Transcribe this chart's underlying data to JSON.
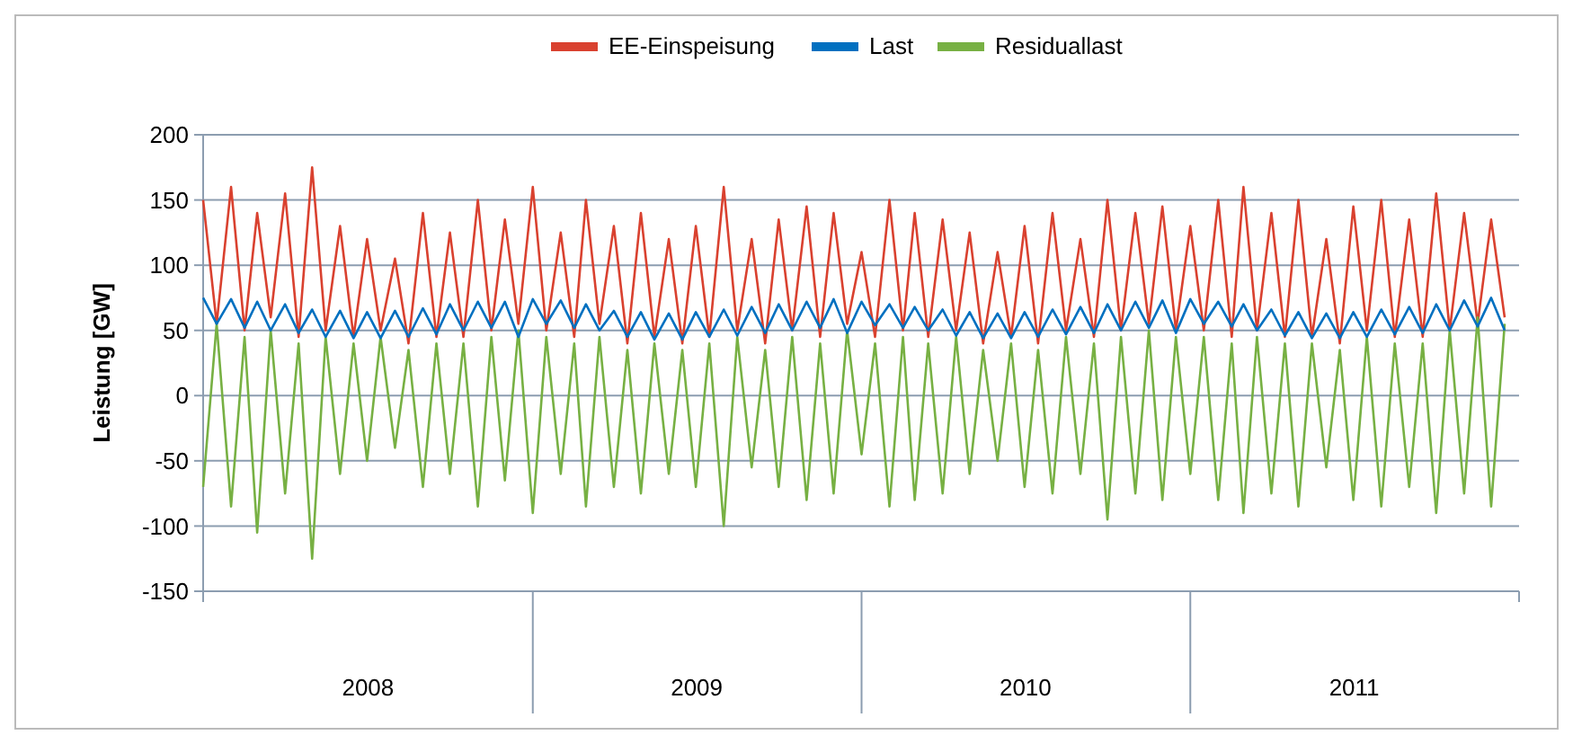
{
  "chart_data": {
    "type": "line",
    "ylabel": "Leistung [GW]",
    "x": [
      "2008-01-01",
      "2008-01-16",
      "2008-02-01",
      "2008-02-16",
      "2008-03-01",
      "2008-03-16",
      "2008-04-01",
      "2008-04-16",
      "2008-05-01",
      "2008-05-16",
      "2008-06-01",
      "2008-06-16",
      "2008-07-01",
      "2008-07-16",
      "2008-08-01",
      "2008-08-16",
      "2008-09-01",
      "2008-09-16",
      "2008-10-01",
      "2008-10-16",
      "2008-11-01",
      "2008-11-16",
      "2008-12-01",
      "2008-12-16",
      "2009-01-01",
      "2009-01-16",
      "2009-02-01",
      "2009-02-16",
      "2009-03-01",
      "2009-03-16",
      "2009-04-01",
      "2009-04-16",
      "2009-05-01",
      "2009-05-16",
      "2009-06-01",
      "2009-06-16",
      "2009-07-01",
      "2009-07-16",
      "2009-08-01",
      "2009-08-16",
      "2009-09-01",
      "2009-09-16",
      "2009-10-01",
      "2009-10-16",
      "2009-11-01",
      "2009-11-16",
      "2009-12-01",
      "2009-12-16",
      "2010-01-01",
      "2010-01-16",
      "2010-02-01",
      "2010-02-16",
      "2010-03-01",
      "2010-03-16",
      "2010-04-01",
      "2010-04-16",
      "2010-05-01",
      "2010-05-16",
      "2010-06-01",
      "2010-06-16",
      "2010-07-01",
      "2010-07-16",
      "2010-08-01",
      "2010-08-16",
      "2010-09-01",
      "2010-09-16",
      "2010-10-01",
      "2010-10-16",
      "2010-11-01",
      "2010-11-16",
      "2010-12-01",
      "2010-12-16",
      "2011-01-01",
      "2011-01-16",
      "2011-02-01",
      "2011-02-16",
      "2011-03-01",
      "2011-03-16",
      "2011-04-01",
      "2011-04-16",
      "2011-05-01",
      "2011-05-16",
      "2011-06-01",
      "2011-06-16",
      "2011-07-01",
      "2011-07-16",
      "2011-08-01",
      "2011-08-16",
      "2011-09-01",
      "2011-09-16",
      "2011-10-01",
      "2011-10-16",
      "2011-11-01",
      "2011-11-16",
      "2011-12-01",
      "2011-12-16"
    ],
    "series": [
      {
        "name": "EE-Einspeisung",
        "color": "#d9412f",
        "values": [
          150,
          55,
          160,
          50,
          140,
          60,
          155,
          45,
          175,
          50,
          130,
          45,
          120,
          50,
          105,
          40,
          140,
          45,
          125,
          45,
          150,
          50,
          135,
          55,
          160,
          50,
          125,
          45,
          150,
          55,
          130,
          40,
          140,
          45,
          120,
          40,
          130,
          45,
          160,
          50,
          120,
          40,
          135,
          50,
          145,
          45,
          140,
          55,
          110,
          45,
          150,
          50,
          140,
          45,
          135,
          50,
          125,
          40,
          110,
          45,
          130,
          40,
          140,
          50,
          120,
          45,
          150,
          50,
          140,
          55,
          145,
          50,
          130,
          50,
          150,
          45,
          160,
          50,
          140,
          45,
          150,
          45,
          120,
          40,
          145,
          50,
          150,
          45,
          135,
          45,
          155,
          50,
          140,
          55,
          135,
          60
        ]
      },
      {
        "name": "Last",
        "color": "#0070c0",
        "values": [
          75,
          55,
          74,
          52,
          72,
          50,
          70,
          48,
          66,
          45,
          65,
          44,
          64,
          44,
          65,
          45,
          67,
          47,
          70,
          50,
          72,
          52,
          72,
          45,
          74,
          55,
          73,
          52,
          70,
          50,
          65,
          45,
          64,
          43,
          63,
          43,
          64,
          45,
          66,
          46,
          68,
          48,
          70,
          50,
          72,
          52,
          74,
          48,
          72,
          54,
          70,
          52,
          68,
          50,
          66,
          46,
          64,
          44,
          63,
          44,
          64,
          45,
          66,
          47,
          68,
          48,
          70,
          50,
          72,
          52,
          73,
          48,
          74,
          55,
          72,
          53,
          70,
          50,
          66,
          46,
          64,
          44,
          63,
          44,
          64,
          45,
          66,
          47,
          68,
          48,
          70,
          50,
          73,
          53,
          75,
          50
        ]
      },
      {
        "name": "Residuallast",
        "color": "#77b043",
        "values": [
          -70,
          55,
          -85,
          45,
          -105,
          50,
          -75,
          40,
          -125,
          45,
          -60,
          40,
          -50,
          45,
          -40,
          35,
          -70,
          40,
          -60,
          40,
          -85,
          45,
          -65,
          50,
          -90,
          45,
          -60,
          40,
          -85,
          45,
          -70,
          35,
          -75,
          40,
          -60,
          35,
          -70,
          40,
          -100,
          45,
          -55,
          35,
          -70,
          45,
          -80,
          40,
          -75,
          50,
          -45,
          40,
          -85,
          45,
          -80,
          40,
          -75,
          45,
          -60,
          35,
          -50,
          40,
          -70,
          35,
          -75,
          45,
          -60,
          40,
          -95,
          45,
          -75,
          50,
          -80,
          45,
          -60,
          45,
          -80,
          40,
          -90,
          45,
          -75,
          40,
          -85,
          40,
          -55,
          35,
          -80,
          45,
          -85,
          40,
          -70,
          40,
          -90,
          50,
          -75,
          60,
          -85,
          55
        ]
      }
    ],
    "ylim": [
      -150,
      200
    ],
    "yticks": [
      -150,
      -100,
      -50,
      0,
      50,
      100,
      150,
      200
    ],
    "xlim": [
      "2008-01-01",
      "2012-01-01"
    ],
    "xticks": [
      {
        "value": "2008-01-01",
        "label": null
      },
      {
        "value": "2008-07-02",
        "label": "2008"
      },
      {
        "value": "2009-01-01",
        "label": null
      },
      {
        "value": "2009-07-02",
        "label": "2009"
      },
      {
        "value": "2010-01-01",
        "label": null
      },
      {
        "value": "2010-07-02",
        "label": "2010"
      },
      {
        "value": "2011-01-01",
        "label": null
      },
      {
        "value": "2011-07-02",
        "label": "2011"
      },
      {
        "value": "2012-01-01",
        "label": null
      }
    ],
    "grid": "y",
    "legend": "top",
    "marker": "none",
    "line_style": "solid"
  }
}
